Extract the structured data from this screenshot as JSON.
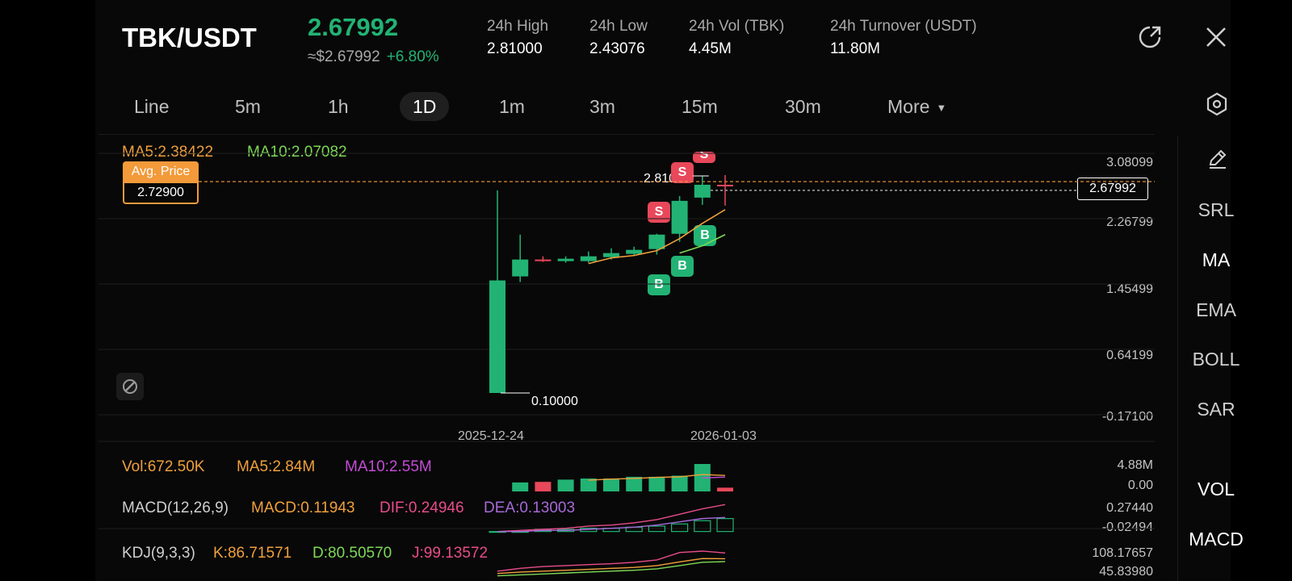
{
  "header": {
    "pair": "TBK/USDT",
    "last_price": "2.67992",
    "approx_usd": "≈$2.67992",
    "change_pct": "+6.80%",
    "stats": [
      {
        "label": "24h  High",
        "value": "2.81000"
      },
      {
        "label": "24h  Low",
        "value": "2.43076"
      },
      {
        "label": "24h  Vol (TBK)",
        "value": "4.45M"
      },
      {
        "label": "24h  Turnover (USDT)",
        "value": "11.80M"
      }
    ],
    "icons": [
      "share-icon",
      "close-icon"
    ]
  },
  "intervals": {
    "tabs": [
      "Line",
      "5m",
      "1h",
      "1D",
      "1m",
      "3m",
      "15m",
      "30m",
      "More"
    ],
    "active": "1D",
    "settings_icon": "settings-hexagon-icon"
  },
  "colors": {
    "up": "#22b374",
    "down": "#e8485a",
    "ma5": "#f0a03c",
    "ma10": "#7ed957",
    "avg": "#f39a3a",
    "ma10_vol": "#c44bd6",
    "dif": "#e84c8a",
    "dea": "#a66ad8",
    "k": "#f0a03c",
    "d": "#7ed957",
    "j": "#e84c8a"
  },
  "main_chart": {
    "ma5_label": "MA5:2.38422",
    "ma10_label": "MA10:2.07082",
    "avg_price_label": "Avg. Price",
    "avg_price_value": "2.72900",
    "last_price_tag": "2.67992",
    "high_marker": "2.81000",
    "low_marker": "0.10000",
    "x_labels": [
      "2025-12-24",
      "2026-01-03"
    ],
    "trade_markers": [
      "S",
      "S",
      "S",
      "B",
      "B",
      "B"
    ]
  },
  "chart_data": {
    "type": "candlestick",
    "ylim": [
      -0.171,
      3.08099
    ],
    "y_ticks": [
      "3.08099",
      "2.26799",
      "1.45499",
      "0.64199",
      "-0.17100"
    ],
    "candles": [
      {
        "o": 0.1,
        "h": 2.62,
        "l": 0.1,
        "c": 1.5
      },
      {
        "o": 1.55,
        "h": 2.07,
        "l": 1.48,
        "c": 1.76
      },
      {
        "o": 1.76,
        "h": 1.8,
        "l": 1.73,
        "c": 1.74
      },
      {
        "o": 1.74,
        "h": 1.8,
        "l": 1.72,
        "c": 1.77
      },
      {
        "o": 1.74,
        "h": 1.86,
        "l": 1.72,
        "c": 1.8
      },
      {
        "o": 1.79,
        "h": 1.9,
        "l": 1.76,
        "c": 1.84
      },
      {
        "o": 1.83,
        "h": 1.92,
        "l": 1.81,
        "c": 1.88
      },
      {
        "o": 1.89,
        "h": 2.08,
        "l": 1.82,
        "c": 2.07
      },
      {
        "o": 2.08,
        "h": 2.55,
        "l": 1.98,
        "c": 2.49
      },
      {
        "o": 2.53,
        "h": 2.8,
        "l": 2.44,
        "c": 2.69
      },
      {
        "o": 2.69,
        "h": 2.81,
        "l": 2.43,
        "c": 2.68
      }
    ],
    "ma5": [
      null,
      null,
      null,
      null,
      1.71,
      1.78,
      1.81,
      1.87,
      2.02,
      2.21,
      2.38
    ],
    "ma10": [
      null,
      null,
      null,
      null,
      null,
      null,
      null,
      null,
      1.84,
      1.93,
      2.07
    ],
    "volume": {
      "label": "Vol:672.50K",
      "ma5_label": "MA5:2.84M",
      "ma10_label": "MA10:2.55M",
      "ticks": [
        "4.88M",
        "0.00"
      ],
      "values": [
        0.0,
        1.6,
        1.7,
        2.1,
        2.3,
        2.3,
        2.6,
        2.6,
        2.8,
        4.88,
        0.67
      ],
      "ma5": [
        null,
        null,
        null,
        null,
        2.0,
        2.2,
        2.3,
        2.5,
        2.6,
        3.0,
        2.84
      ],
      "ma10": [
        null,
        null,
        null,
        null,
        null,
        null,
        null,
        null,
        null,
        2.4,
        2.55
      ]
    },
    "macd": {
      "label": "MACD(12,26,9)",
      "macd_label": "MACD:0.11943",
      "dif_label": "DIF:0.24946",
      "dea_label": "DEA:0.13003",
      "ticks": [
        "0.27440",
        "-0.02494"
      ],
      "hist": [
        0.0,
        0.0,
        0.02,
        0.02,
        0.03,
        0.03,
        0.04,
        0.05,
        0.07,
        0.1,
        0.12
      ],
      "dif": [
        0.0,
        0.01,
        0.02,
        0.03,
        0.05,
        0.06,
        0.08,
        0.11,
        0.16,
        0.21,
        0.25
      ],
      "dea": [
        0.0,
        0.0,
        0.01,
        0.01,
        0.02,
        0.03,
        0.04,
        0.06,
        0.09,
        0.12,
        0.13
      ]
    },
    "kdj": {
      "label": "KDJ(9,3,3)",
      "k_label": "K:86.71571",
      "d_label": "D:80.50570",
      "j_label": "J:99.13572",
      "ticks": [
        "108.17657",
        "45.83980"
      ],
      "k": [
        55,
        58,
        60,
        62,
        64,
        66,
        68,
        72,
        80,
        87,
        86.7
      ],
      "d": [
        50,
        52,
        54,
        56,
        58,
        60,
        62,
        65,
        72,
        79,
        80.5
      ],
      "j": [
        60,
        66,
        70,
        72,
        74,
        76,
        79,
        84,
        100,
        103,
        99.1
      ]
    }
  },
  "sidebar": {
    "draw_icon": "pencil-icon",
    "indicators": [
      "SRL",
      "MA",
      "EMA",
      "BOLL",
      "SAR"
    ],
    "sub_indicators": [
      "VOL",
      "MACD"
    ]
  }
}
